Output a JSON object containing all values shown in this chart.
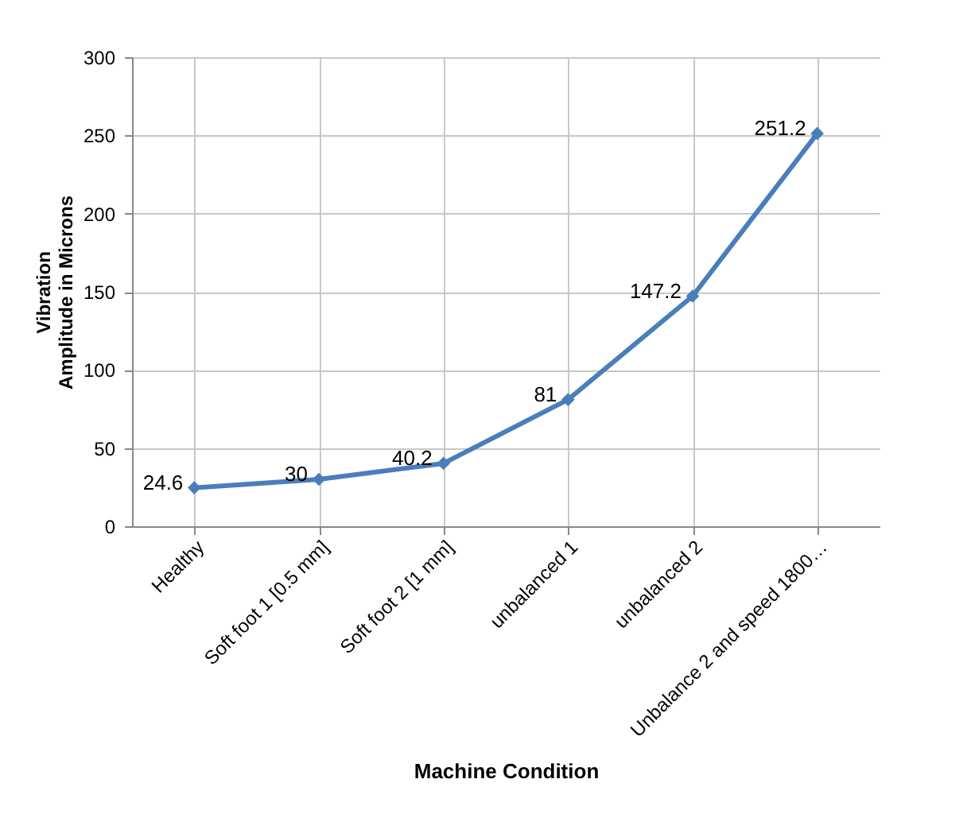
{
  "chart_data": {
    "type": "line",
    "xlabel": "Machine Condition",
    "ylabel": "Vibration\nAmplitude in  Microns",
    "categories": [
      "Healthy",
      "Soft foot 1 [0.5 mm]",
      "Soft foot 2 [1 mm]",
      "unbalanced 1",
      "unbalanced 2",
      "Unbalance 2 and speed 1800…"
    ],
    "series": [
      {
        "color": "#4a7ebb",
        "values": [
          24.6,
          30,
          40.2,
          81,
          147.2,
          251.2
        ]
      }
    ],
    "ylim": [
      0,
      300
    ],
    "yticks": [
      0,
      50,
      100,
      150,
      200,
      250,
      300
    ],
    "grid": true,
    "marker": "diamond",
    "line_style": "solid",
    "data_labels": true,
    "legend": false
  }
}
